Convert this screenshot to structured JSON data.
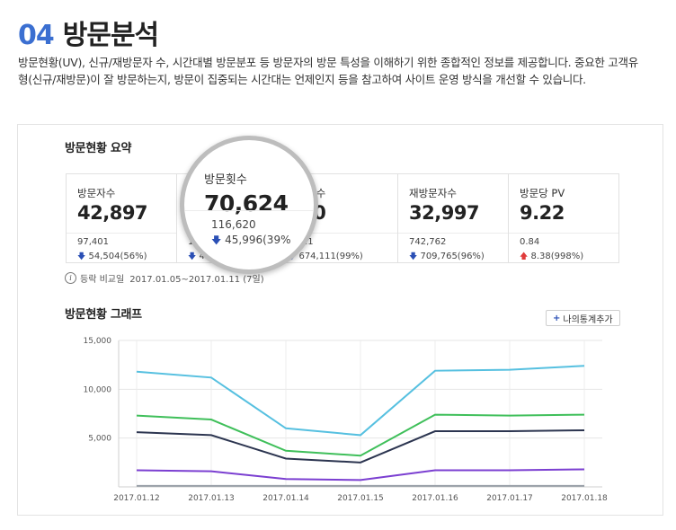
{
  "header": {
    "number": "04",
    "title": "방문분석"
  },
  "description": "방문현황(UV), 신규/재방문자 수, 시간대별 방문분포 등 방문자의 방문 특성을 이해하기 위한 종합적인 정보를 제공합니다. 중요한 고객유형(신규/재방문)이 잘 방문하는지, 방문이 집중되는 시간대는 언제인지 등을 참고하여 사이트 운영 방식을 개선할 수 있습니다.",
  "summary": {
    "title": "방문현황 요약",
    "cells": [
      {
        "label": "방문자수",
        "value": "42,897",
        "prev": "97,401",
        "change_dir": "down",
        "change": "54,504(56%)"
      },
      {
        "label": "방문횟수",
        "value": "70,624",
        "prev": "116,620",
        "change_dir": "down",
        "change": "45,996(39%)"
      },
      {
        "label": "신규방문자수",
        "value": "9,900",
        "prev": "684,011",
        "change_dir": "down",
        "change": "674,111(99%)"
      },
      {
        "label": "재방문자수",
        "value": "32,997",
        "prev": "742,762",
        "change_dir": "down",
        "change": "709,765(96%)"
      },
      {
        "label": "방문당 PV",
        "value": "9.22",
        "prev": "0.84",
        "change_dir": "up",
        "change": "8.38(998%)"
      }
    ],
    "visible_partial": {
      "cell1_prev": "1",
      "cell1_change": "4",
      "cell2_label": "방문자수",
      "cell2_value": "900",
      "cell2_prev": "4,011",
      "cell2_change": "674,111(99%)"
    },
    "compare_label": "등락 비교일",
    "compare_range": "2017.01.05~2017.01.11 (7일)"
  },
  "magnifier": {
    "label": "방문횟수",
    "value": "70,624",
    "prev": "116,620",
    "change": "45,996(39%"
  },
  "graph": {
    "title": "방문현황 그래프",
    "add_button": "나의통계추가"
  },
  "chart_data": {
    "type": "line",
    "title": "방문현황 그래프",
    "categories": [
      "2017.01.12",
      "2017.01.13",
      "2017.01.14",
      "2017.01.15",
      "2017.01.16",
      "2017.01.17",
      "2017.01.18"
    ],
    "y_ticks": [
      "15,000",
      "10,000",
      "5,000"
    ],
    "ylim": [
      0,
      15000
    ],
    "grid": true,
    "series": [
      {
        "color": "#56c0e0",
        "values": [
          11800,
          11200,
          6000,
          5300,
          11900,
          12000,
          12400
        ]
      },
      {
        "color": "#3fbf5a",
        "values": [
          7300,
          6900,
          3700,
          3200,
          7400,
          7300,
          7400
        ]
      },
      {
        "color": "#2c3550",
        "values": [
          5600,
          5300,
          2900,
          2500,
          5700,
          5700,
          5800
        ]
      },
      {
        "color": "#7b3fd1",
        "values": [
          1700,
          1600,
          800,
          700,
          1700,
          1700,
          1800
        ]
      },
      {
        "color": "#9aa0a8",
        "values": [
          100,
          100,
          100,
          100,
          100,
          100,
          100
        ]
      }
    ]
  }
}
